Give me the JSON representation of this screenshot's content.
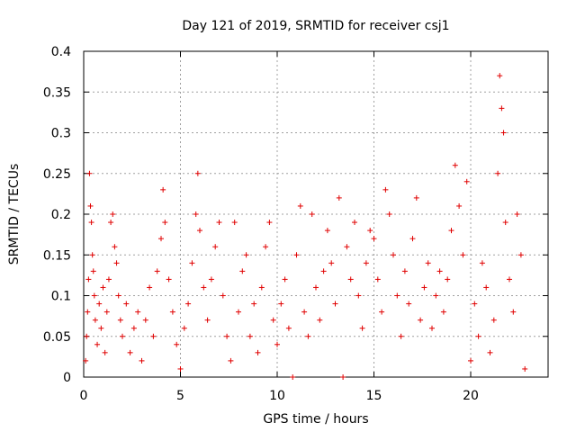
{
  "chart_data": {
    "type": "scatter",
    "title": "Day 121 of 2019, SRMTID for receiver csj1",
    "xlabel": "GPS time / hours",
    "ylabel": "SRMTID / TECUs",
    "xlim": [
      0,
      24
    ],
    "ylim": [
      0,
      0.4
    ],
    "xticks": [
      0,
      5,
      10,
      15,
      20
    ],
    "xtick_labels": [
      "0",
      "5",
      "10",
      "15",
      "20"
    ],
    "yticks": [
      0,
      0.05,
      0.1,
      0.15,
      0.2,
      0.25,
      0.3,
      0.35,
      0.4
    ],
    "ytick_labels": [
      "0",
      "0.05",
      "0.1",
      "0.15",
      "0.2",
      "0.25",
      "0.3",
      "0.35",
      "0.4"
    ],
    "grid": true,
    "marker": "+",
    "color": "#e00000",
    "series": [
      {
        "name": "SRMTID",
        "points": [
          [
            0.1,
            0.02
          ],
          [
            0.15,
            0.05
          ],
          [
            0.2,
            0.08
          ],
          [
            0.25,
            0.12
          ],
          [
            0.3,
            0.25
          ],
          [
            0.35,
            0.21
          ],
          [
            0.4,
            0.19
          ],
          [
            0.45,
            0.15
          ],
          [
            0.5,
            0.13
          ],
          [
            0.55,
            0.1
          ],
          [
            0.6,
            0.07
          ],
          [
            0.7,
            0.04
          ],
          [
            0.8,
            0.09
          ],
          [
            0.9,
            0.06
          ],
          [
            1.0,
            0.11
          ],
          [
            1.1,
            0.03
          ],
          [
            1.2,
            0.08
          ],
          [
            1.3,
            0.12
          ],
          [
            1.4,
            0.19
          ],
          [
            1.5,
            0.2
          ],
          [
            1.6,
            0.16
          ],
          [
            1.7,
            0.14
          ],
          [
            1.8,
            0.1
          ],
          [
            1.9,
            0.07
          ],
          [
            2.0,
            0.05
          ],
          [
            2.2,
            0.09
          ],
          [
            2.4,
            0.03
          ],
          [
            2.6,
            0.06
          ],
          [
            2.8,
            0.08
          ],
          [
            3.0,
            0.02
          ],
          [
            3.2,
            0.07
          ],
          [
            3.4,
            0.11
          ],
          [
            3.6,
            0.05
          ],
          [
            3.8,
            0.13
          ],
          [
            4.0,
            0.17
          ],
          [
            4.1,
            0.23
          ],
          [
            4.2,
            0.19
          ],
          [
            4.4,
            0.12
          ],
          [
            4.6,
            0.08
          ],
          [
            4.8,
            0.04
          ],
          [
            5.0,
            0.01
          ],
          [
            5.2,
            0.06
          ],
          [
            5.4,
            0.09
          ],
          [
            5.6,
            0.14
          ],
          [
            5.8,
            0.2
          ],
          [
            5.9,
            0.25
          ],
          [
            6.0,
            0.18
          ],
          [
            6.2,
            0.11
          ],
          [
            6.4,
            0.07
          ],
          [
            6.6,
            0.12
          ],
          [
            6.8,
            0.16
          ],
          [
            7.0,
            0.19
          ],
          [
            7.2,
            0.1
          ],
          [
            7.4,
            0.05
          ],
          [
            7.6,
            0.02
          ],
          [
            7.8,
            0.19
          ],
          [
            8.0,
            0.08
          ],
          [
            8.2,
            0.13
          ],
          [
            8.4,
            0.15
          ],
          [
            8.6,
            0.05
          ],
          [
            8.8,
            0.09
          ],
          [
            9.0,
            0.03
          ],
          [
            9.2,
            0.11
          ],
          [
            9.4,
            0.16
          ],
          [
            9.6,
            0.19
          ],
          [
            9.8,
            0.07
          ],
          [
            10.0,
            0.04
          ],
          [
            10.2,
            0.09
          ],
          [
            10.4,
            0.12
          ],
          [
            10.6,
            0.06
          ],
          [
            10.8,
            0.0
          ],
          [
            11.0,
            0.15
          ],
          [
            11.2,
            0.21
          ],
          [
            11.4,
            0.08
          ],
          [
            11.6,
            0.05
          ],
          [
            11.8,
            0.2
          ],
          [
            12.0,
            0.11
          ],
          [
            12.2,
            0.07
          ],
          [
            12.4,
            0.13
          ],
          [
            12.6,
            0.18
          ],
          [
            12.8,
            0.14
          ],
          [
            13.0,
            0.09
          ],
          [
            13.2,
            0.22
          ],
          [
            13.4,
            0.0
          ],
          [
            13.6,
            0.16
          ],
          [
            13.8,
            0.12
          ],
          [
            14.0,
            0.19
          ],
          [
            14.2,
            0.1
          ],
          [
            14.4,
            0.06
          ],
          [
            14.6,
            0.14
          ],
          [
            14.8,
            0.18
          ],
          [
            15.0,
            0.17
          ],
          [
            15.2,
            0.12
          ],
          [
            15.4,
            0.08
          ],
          [
            15.6,
            0.23
          ],
          [
            15.8,
            0.2
          ],
          [
            16.0,
            0.15
          ],
          [
            16.2,
            0.1
          ],
          [
            16.4,
            0.05
          ],
          [
            16.6,
            0.13
          ],
          [
            16.8,
            0.09
          ],
          [
            17.0,
            0.17
          ],
          [
            17.2,
            0.22
          ],
          [
            17.4,
            0.07
          ],
          [
            17.6,
            0.11
          ],
          [
            17.8,
            0.14
          ],
          [
            18.0,
            0.06
          ],
          [
            18.2,
            0.1
          ],
          [
            18.4,
            0.13
          ],
          [
            18.6,
            0.08
          ],
          [
            18.8,
            0.12
          ],
          [
            19.0,
            0.18
          ],
          [
            19.2,
            0.26
          ],
          [
            19.4,
            0.21
          ],
          [
            19.6,
            0.15
          ],
          [
            19.8,
            0.24
          ],
          [
            20.0,
            0.02
          ],
          [
            20.2,
            0.09
          ],
          [
            20.4,
            0.05
          ],
          [
            20.6,
            0.14
          ],
          [
            20.8,
            0.11
          ],
          [
            21.0,
            0.03
          ],
          [
            21.2,
            0.07
          ],
          [
            21.4,
            0.25
          ],
          [
            21.5,
            0.37
          ],
          [
            21.6,
            0.33
          ],
          [
            21.7,
            0.3
          ],
          [
            21.8,
            0.19
          ],
          [
            22.0,
            0.12
          ],
          [
            22.2,
            0.08
          ],
          [
            22.4,
            0.2
          ],
          [
            22.6,
            0.15
          ],
          [
            22.8,
            0.01
          ]
        ]
      }
    ]
  }
}
